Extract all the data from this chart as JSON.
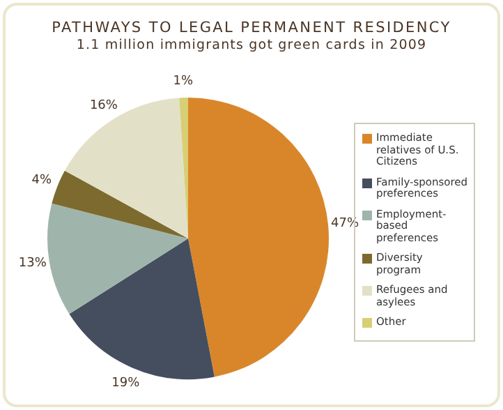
{
  "chart_data": {
    "type": "pie",
    "title": "PATHWAYS TO LEGAL PERMANENT RESIDENCY",
    "subtitle": "1.1 million immigrants got green cards in 2009",
    "categories": [
      "Immediate relatives of U.S. Citizens",
      "Family-sponsored preferences",
      "Employment-based preferences",
      "Diversity program",
      "Refugees and asylees",
      "Other"
    ],
    "values": [
      47,
      19,
      13,
      4,
      16,
      1
    ],
    "colors": [
      "#d9862a",
      "#454e5e",
      "#9fb5ac",
      "#7d6a2e",
      "#e3e0c8",
      "#d8cf74"
    ],
    "value_labels": [
      "47%",
      "19%",
      "13%",
      "4%",
      "16%",
      "1%"
    ],
    "legend": "right"
  }
}
